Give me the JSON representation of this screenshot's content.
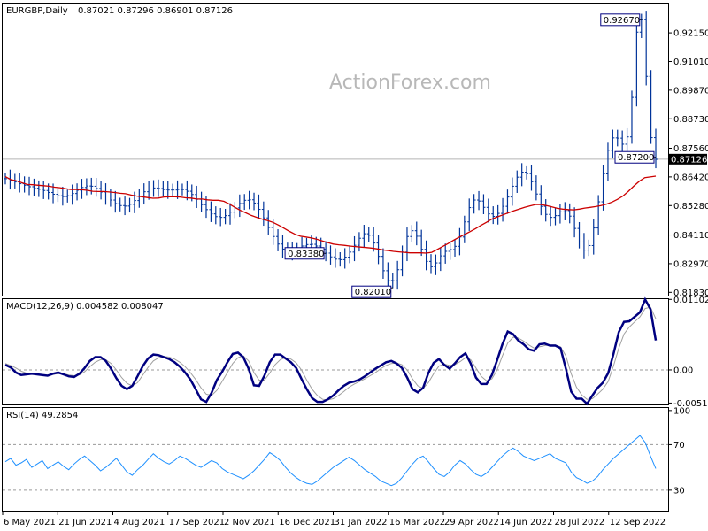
{
  "chart_data": {
    "type": "candlestick",
    "symbol_header": "EURGBP,Daily",
    "ohlc_header": "0.87021 0.87296 0.86901 0.87126",
    "watermark": "ActionForex.com",
    "x_tick_labels": [
      "6 May 2021",
      "21 Jun 2021",
      "4 Aug 2021",
      "17 Sep 2021",
      "2 Nov 2021",
      "16 Dec 2021",
      "31 Jan 2022",
      "16 Mar 2022",
      "29 Apr 2022",
      "14 Jun 2022",
      "28 Jul 2022",
      "12 Sep 2022"
    ],
    "price": {
      "ylim": [
        0.817,
        0.9335
      ],
      "y_ticks": [
        "0.92150",
        "0.91010",
        "0.89870",
        "0.88730",
        "0.87560",
        "0.86420",
        "0.85280",
        "0.84110",
        "0.82970",
        "0.81830"
      ],
      "current_price_label": "0.87126",
      "current_price": 0.87126,
      "ma_line_color": "#cc0000",
      "bar_color": "#003399",
      "annotations": [
        {
          "label": "0.92670",
          "value": 0.9267
        },
        {
          "label": "0.87200",
          "value": 0.872
        },
        {
          "label": "0.83380",
          "value": 0.8338
        },
        {
          "label": "0.82010",
          "value": 0.8201
        }
      ]
    },
    "macd": {
      "header": "MACD(12,26,9) 0.004582 0.008047",
      "ylim": [
        -0.0054,
        0.0112
      ],
      "y_ticks": [
        "0.011023",
        "0.00",
        "-0.005182"
      ],
      "macd_color": "#000080",
      "signal_color": "#a0a0a0"
    },
    "rsi": {
      "header": "RSI(14) 49.2854",
      "ylim": [
        12,
        103
      ],
      "y_ticks": [
        "100",
        "70",
        "30"
      ],
      "levels": [
        70,
        30
      ],
      "line_color": "#1e90ff"
    },
    "price_series": [
      0.8635,
      0.8628,
      0.8622,
      0.8615,
      0.8609,
      0.8603,
      0.8597,
      0.8593,
      0.8588,
      0.858,
      0.8573,
      0.8567,
      0.8564,
      0.8567,
      0.8576,
      0.8589,
      0.86,
      0.8606,
      0.8605,
      0.8596,
      0.8582,
      0.8566,
      0.855,
      0.8536,
      0.8528,
      0.8526,
      0.8533,
      0.8548,
      0.8566,
      0.8583,
      0.8594,
      0.8598,
      0.8596,
      0.8592,
      0.859,
      0.859,
      0.8592,
      0.8592,
      0.8585,
      0.8572,
      0.8553,
      0.8532,
      0.8512,
      0.8495,
      0.8484,
      0.8481,
      0.8488,
      0.8502,
      0.8519,
      0.8536,
      0.8549,
      0.8551,
      0.8538,
      0.8513,
      0.8479,
      0.8441,
      0.8405,
      0.8375,
      0.8355,
      0.8346,
      0.8348,
      0.8356,
      0.8367,
      0.8373,
      0.8374,
      0.8367,
      0.8354,
      0.8339,
      0.8324,
      0.8315,
      0.8313,
      0.8323,
      0.8343,
      0.837,
      0.8398,
      0.8416,
      0.841,
      0.8379,
      0.8326,
      0.8269,
      0.823,
      0.8229,
      0.8273,
      0.8343,
      0.8405,
      0.8428,
      0.8406,
      0.8354,
      0.8306,
      0.8285,
      0.83,
      0.8328,
      0.8346,
      0.8353,
      0.8366,
      0.8403,
      0.8463,
      0.852,
      0.855,
      0.8546,
      0.8521,
      0.8495,
      0.8485,
      0.8497,
      0.8525,
      0.8562,
      0.8605,
      0.8641,
      0.8661,
      0.8655,
      0.8623,
      0.8574,
      0.8525,
      0.8493,
      0.8481,
      0.8488,
      0.8503,
      0.8508,
      0.8486,
      0.8437,
      0.8383,
      0.8351,
      0.8369,
      0.8439,
      0.8543,
      0.8654,
      0.8748,
      0.8797,
      0.8796,
      0.8772,
      0.8801,
      0.8958,
      0.9218,
      0.9267,
      0.9042,
      0.8798,
      0.8712
    ],
    "ma_series": [
      0.8643,
      0.8631,
      0.8627,
      0.8619,
      0.8612,
      0.8611,
      0.8609,
      0.8607,
      0.8605,
      0.8601,
      0.8599,
      0.8595,
      0.8592,
      0.8592,
      0.8591,
      0.8589,
      0.8585,
      0.8584,
      0.8584,
      0.8582,
      0.858,
      0.8577,
      0.8575,
      0.857,
      0.8566,
      0.8563,
      0.856,
      0.8557,
      0.8558,
      0.8562,
      0.8563,
      0.8563,
      0.8562,
      0.8559,
      0.8558,
      0.8554,
      0.8554,
      0.8551,
      0.8549,
      0.8549,
      0.8545,
      0.8534,
      0.8521,
      0.8509,
      0.8499,
      0.8489,
      0.8481,
      0.8474,
      0.8468,
      0.8461,
      0.845,
      0.8438,
      0.8425,
      0.8414,
      0.8406,
      0.8403,
      0.8399,
      0.8394,
      0.8387,
      0.8381,
      0.8375,
      0.8372,
      0.837,
      0.8367,
      0.8365,
      0.8363,
      0.8361,
      0.8359,
      0.8356,
      0.8352,
      0.8349,
      0.8346,
      0.8344,
      0.8342,
      0.834,
      0.834,
      0.834,
      0.8339,
      0.8342,
      0.8353,
      0.8365,
      0.8377,
      0.839,
      0.8402,
      0.8413,
      0.8424,
      0.8436,
      0.8449,
      0.8461,
      0.8474,
      0.8483,
      0.8491,
      0.8499,
      0.8507,
      0.8514,
      0.8521,
      0.8527,
      0.8532,
      0.8532,
      0.8528,
      0.8523,
      0.8517,
      0.8514,
      0.8512,
      0.8511,
      0.8514,
      0.8518,
      0.8521,
      0.8524,
      0.8528,
      0.8534,
      0.8542,
      0.8553,
      0.8566,
      0.8585,
      0.8606,
      0.8625,
      0.8639,
      0.8642,
      0.8645
    ],
    "macd_series": [
      0.0008,
      0.0004,
      -0.0004,
      -0.0008,
      -0.0007,
      -0.0006,
      -0.0007,
      -0.0008,
      -0.0009,
      -0.0006,
      -0.0004,
      -0.0007,
      -0.001,
      -0.0011,
      -0.0006,
      0.0003,
      0.0014,
      0.002,
      0.002,
      0.0014,
      0.0002,
      -0.0013,
      -0.0025,
      -0.003,
      -0.0025,
      -0.001,
      0.0006,
      0.0018,
      0.0024,
      0.0023,
      0.002,
      0.0017,
      0.0012,
      0.0005,
      -0.0004,
      -0.0015,
      -0.003,
      -0.0046,
      -0.005,
      -0.0036,
      -0.0016,
      -0.0003,
      0.0012,
      0.0025,
      0.0027,
      0.002,
      0.0002,
      -0.0024,
      -0.0025,
      -0.0009,
      0.0012,
      0.0024,
      0.0024,
      0.0018,
      0.0012,
      0.0003,
      -0.0014,
      -0.003,
      -0.0044,
      -0.005,
      -0.005,
      -0.0046,
      -0.004,
      -0.0032,
      -0.0025,
      -0.002,
      -0.0018,
      -0.0015,
      -0.001,
      -0.0004,
      0.0002,
      0.0007,
      0.0012,
      0.0014,
      0.001,
      0.0003,
      -0.0012,
      -0.003,
      -0.0035,
      -0.0028,
      -0.0005,
      0.0011,
      0.0017,
      0.0008,
      0.0002,
      0.001,
      0.002,
      0.0026,
      0.001,
      -0.0012,
      -0.0022,
      -0.0022,
      -0.0008,
      0.0015,
      0.004,
      0.006,
      0.0056,
      0.0046,
      0.004,
      0.0032,
      0.003,
      0.004,
      0.0041,
      0.0038,
      0.0038,
      0.0034,
      0.0002,
      -0.0034,
      -0.0045,
      -0.0045,
      -0.0053,
      -0.004,
      -0.0028,
      -0.002,
      -0.0005,
      0.0025,
      0.0059,
      0.0075,
      0.0076,
      0.0083,
      0.009,
      0.011,
      0.0095,
      0.0046
    ],
    "signal_series": [
      0.001,
      0.0007,
      0.0003,
      -0.0002,
      -0.0005,
      -0.0006,
      -0.0007,
      -0.0008,
      -0.0008,
      -0.0007,
      -0.0006,
      -0.0006,
      -0.0008,
      -0.0009,
      -0.0008,
      -0.0003,
      0.0005,
      0.0012,
      0.0016,
      0.0016,
      0.001,
      0.0,
      -0.0012,
      -0.0021,
      -0.0025,
      -0.002,
      -0.0008,
      0.0004,
      0.0014,
      0.0019,
      0.0021,
      0.002,
      0.0017,
      0.0012,
      0.0005,
      -0.0004,
      -0.0015,
      -0.0028,
      -0.0038,
      -0.004,
      -0.0032,
      -0.0018,
      -0.0004,
      0.001,
      0.0019,
      0.0022,
      0.0014,
      -0.0004,
      -0.0016,
      -0.0016,
      -0.0005,
      0.0008,
      0.0016,
      0.0019,
      0.0017,
      0.0011,
      0.0,
      -0.0016,
      -0.003,
      -0.004,
      -0.0046,
      -0.0047,
      -0.0045,
      -0.004,
      -0.0034,
      -0.0027,
      -0.0022,
      -0.0018,
      -0.0014,
      -0.0009,
      -0.0004,
      0.0002,
      0.0007,
      0.001,
      0.0011,
      0.0008,
      0.0,
      -0.0014,
      -0.0025,
      -0.0029,
      -0.002,
      -0.0006,
      0.0006,
      0.0009,
      0.0007,
      0.0008,
      0.0013,
      0.0019,
      0.0016,
      0.0003,
      -0.001,
      -0.0017,
      -0.0014,
      0.0,
      0.0022,
      0.0042,
      0.0051,
      0.005,
      0.0045,
      0.0039,
      0.0034,
      0.0036,
      0.0038,
      0.0039,
      0.0039,
      0.0036,
      0.0022,
      -0.0006,
      -0.0027,
      -0.0039,
      -0.0046,
      -0.0045,
      -0.0038,
      -0.003,
      -0.0018,
      0.0006,
      0.0034,
      0.0056,
      0.0067,
      0.0075,
      0.0083,
      0.0096,
      0.0098,
      0.008
    ],
    "rsi_series": [
      55,
      58,
      52,
      54,
      57,
      50,
      53,
      56,
      49,
      52,
      55,
      51,
      48,
      53,
      57,
      60,
      56,
      52,
      47,
      50,
      54,
      58,
      52,
      46,
      43,
      48,
      52,
      57,
      62,
      58,
      55,
      53,
      56,
      60,
      58,
      55,
      52,
      50,
      53,
      56,
      54,
      49,
      46,
      44,
      42,
      40,
      43,
      47,
      52,
      57,
      63,
      60,
      56,
      50,
      45,
      41,
      38,
      36,
      35,
      38,
      42,
      46,
      50,
      53,
      56,
      59,
      56,
      52,
      48,
      45,
      42,
      38,
      36,
      34,
      36,
      41,
      47,
      53,
      58,
      60,
      55,
      49,
      44,
      42,
      46,
      52,
      56,
      53,
      48,
      44,
      42,
      45,
      50,
      55,
      60,
      64,
      67,
      64,
      60,
      58,
      56,
      58,
      60,
      62,
      58,
      56,
      54,
      46,
      41,
      39,
      36,
      38,
      42,
      48,
      53,
      58,
      62,
      66,
      70,
      74,
      78,
      72,
      60,
      49
    ]
  }
}
